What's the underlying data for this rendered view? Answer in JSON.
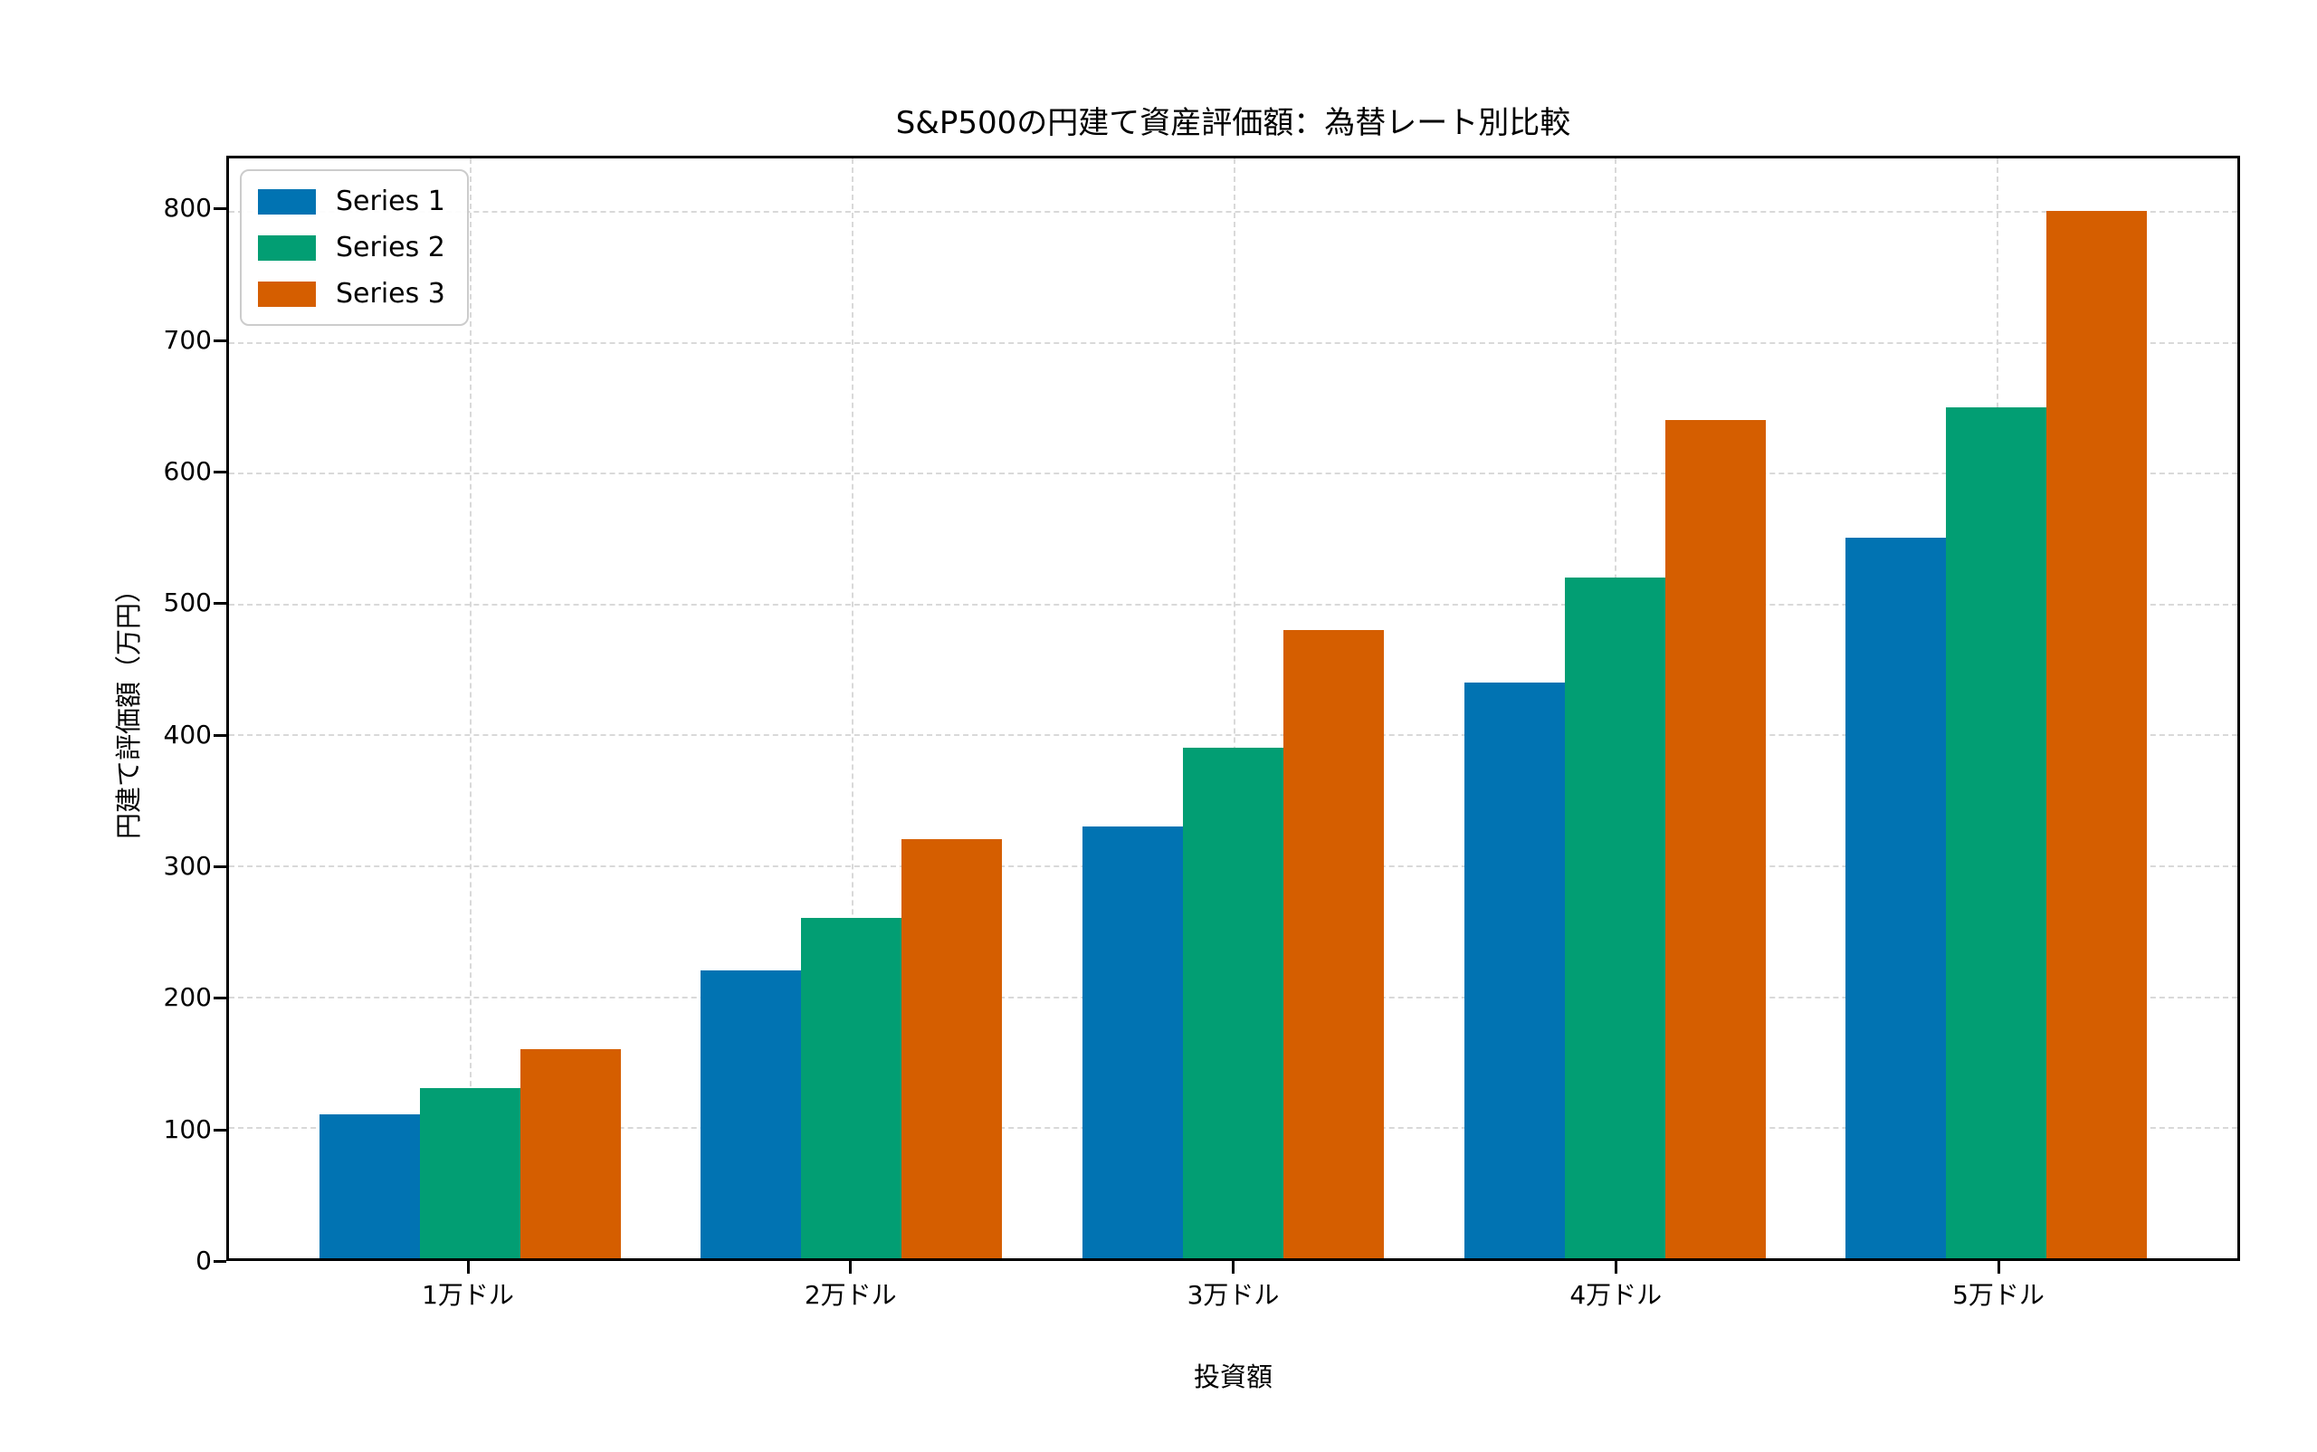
{
  "chart_data": {
    "type": "bar",
    "title": "S&P500の円建て資産評価額：為替レート別比較",
    "xlabel": "投資額",
    "ylabel": "円建て評価額（万円）",
    "categories": [
      "1万ドル",
      "2万ドル",
      "3万ドル",
      "4万ドル",
      "5万ドル"
    ],
    "series": [
      {
        "name": "Series 1",
        "color": "#0173b2",
        "values": [
          110,
          220,
          330,
          440,
          550
        ]
      },
      {
        "name": "Series 2",
        "color": "#029e73",
        "values": [
          130,
          260,
          390,
          520,
          650
        ]
      },
      {
        "name": "Series 3",
        "color": "#d55e00",
        "values": [
          160,
          320,
          480,
          640,
          800
        ]
      }
    ],
    "ylim": [
      0,
      840
    ],
    "yticks": [
      0,
      100,
      200,
      300,
      400,
      500,
      600,
      700,
      800
    ],
    "grid": true,
    "grid_style": "dashed",
    "legend_position": "upper left",
    "background_color": "#ffffff",
    "spine_color": "#000000",
    "gridline_color": "#d9d9d9"
  }
}
